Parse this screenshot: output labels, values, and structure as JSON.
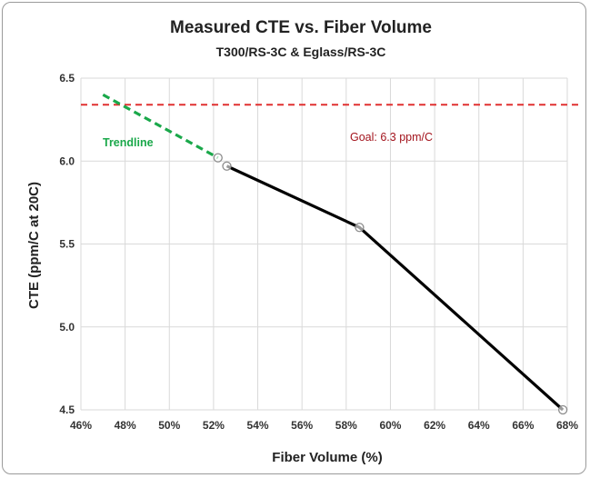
{
  "chart_data": {
    "type": "line",
    "title": "Measured CTE vs. Fiber Volume",
    "subtitle": "T300/RS-3C & Eglass/RS-3C",
    "xlabel": "Fiber Volume (%)",
    "ylabel": "CTE   (ppm/C at 20C)",
    "xlim": [
      46,
      68
    ],
    "ylim": [
      4.5,
      6.5
    ],
    "x_ticks": [
      "46%",
      "48%",
      "50%",
      "52%",
      "54%",
      "56%",
      "58%",
      "60%",
      "62%",
      "64%",
      "66%",
      "68%"
    ],
    "y_ticks": [
      "4.5",
      "5.0",
      "5.5",
      "6.0",
      "6.5"
    ],
    "grid": true,
    "series": [
      {
        "color": "#000000",
        "x": [
          52.6,
          58.6,
          67.8
        ],
        "y": [
          5.97,
          5.6,
          4.5
        ],
        "markers": true
      }
    ],
    "marker_extra": [
      {
        "x": 52.2,
        "y": 6.02
      }
    ],
    "trendline": {
      "label": "Trendline",
      "color": "#1aa84a",
      "x": [
        47.0,
        52.2
      ],
      "y": [
        6.4,
        6.02
      ]
    },
    "goal_line": {
      "label": "Goal:  6.3 ppm/C",
      "color": "#e03030",
      "y": 6.34
    }
  }
}
